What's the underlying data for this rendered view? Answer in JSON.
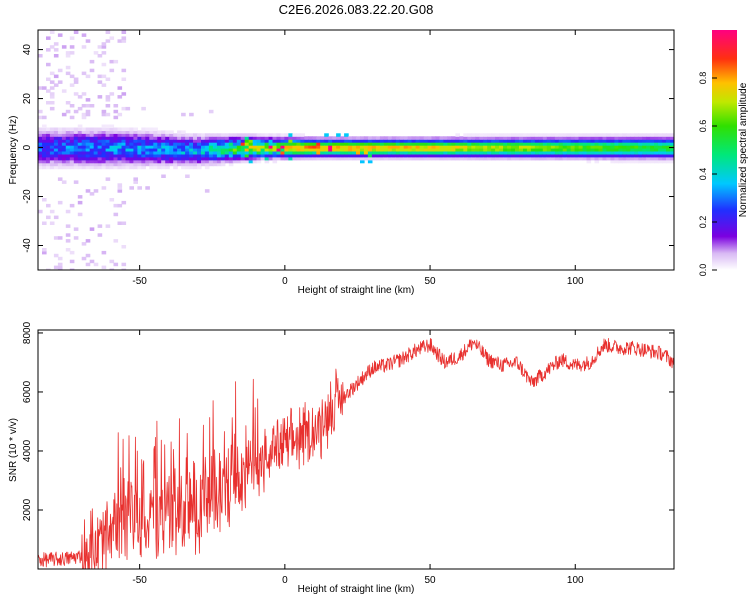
{
  "title": "C2E6.2026.083.22.20.G08",
  "chart_data": [
    {
      "type": "heatmap",
      "name": "spectrogram",
      "xlabel": "Height of straight line (km)",
      "ylabel": "Frequency (Hz)",
      "xlim": [
        -85,
        134
      ],
      "ylim": [
        -50,
        48
      ],
      "xticks": [
        -50,
        0,
        50,
        100
      ],
      "yticks": [
        -40,
        -20,
        0,
        20,
        40
      ],
      "colorbar": {
        "label": "Normalized spectral amplitude",
        "range": [
          0,
          1
        ],
        "ticks": [
          0.0,
          0.2,
          0.4,
          0.6,
          0.8
        ]
      },
      "description_points": [
        {
          "x": -85,
          "center_hz": 0,
          "halfwidth_hz": 5,
          "peak": 0.35
        },
        {
          "x": -60,
          "center_hz": 0,
          "halfwidth_hz": 5,
          "peak": 0.4
        },
        {
          "x": -30,
          "center_hz": -1,
          "halfwidth_hz": 4,
          "peak": 0.45
        },
        {
          "x": -10,
          "center_hz": 0,
          "halfwidth_hz": 3,
          "peak": 0.85
        },
        {
          "x": 10,
          "center_hz": 0,
          "halfwidth_hz": 2.5,
          "peak": 0.9
        },
        {
          "x": 40,
          "center_hz": 0,
          "halfwidth_hz": 2.5,
          "peak": 0.85
        },
        {
          "x": 134,
          "center_hz": 0,
          "halfwidth_hz": 3,
          "peak": 0.6
        }
      ]
    },
    {
      "type": "line",
      "name": "snr",
      "xlabel": "Height of straight line (km)",
      "ylabel": "SNR (10 * v/v)",
      "xlim": [
        -85,
        134
      ],
      "ylim": [
        0,
        8100
      ],
      "xticks": [
        -50,
        0,
        50,
        100
      ],
      "yticks": [
        2000,
        4000,
        6000,
        8000
      ],
      "color": "#e8302e",
      "series": [
        {
          "name": "SNR trend",
          "x": [
            -85,
            -75,
            -70,
            -65,
            -60,
            -55,
            -50,
            -45,
            -40,
            -35,
            -30,
            -25,
            -20,
            -15,
            -10,
            -5,
            0,
            5,
            10,
            15,
            20,
            25,
            30,
            35,
            40,
            45,
            50,
            55,
            60,
            65,
            70,
            75,
            80,
            85,
            90,
            95,
            100,
            105,
            110,
            115,
            120,
            125,
            130,
            134
          ],
          "values": [
            300,
            350,
            450,
            600,
            1000,
            1700,
            1500,
            1700,
            1900,
            2000,
            2100,
            2500,
            3000,
            3200,
            3400,
            4000,
            4200,
            4400,
            4600,
            5300,
            5800,
            6300,
            6800,
            6900,
            7100,
            7400,
            7600,
            7000,
            7200,
            7700,
            7100,
            6900,
            7000,
            6300,
            6700,
            7100,
            6900,
            7000,
            7600,
            7500,
            7500,
            7400,
            7300,
            7000
          ]
        }
      ]
    }
  ]
}
